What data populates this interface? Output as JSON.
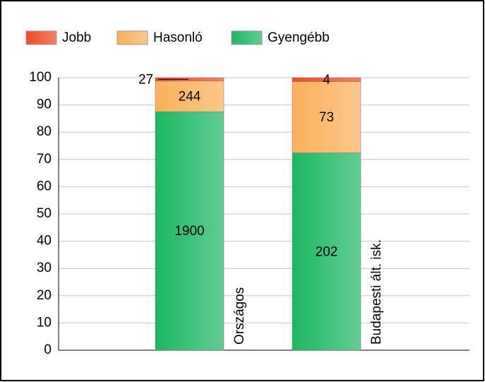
{
  "chart_data": {
    "type": "bar",
    "stacking": "percent",
    "categories": [
      "Országos",
      "Budapesti ált. isk."
    ],
    "series": [
      {
        "name": "Jobb",
        "color": "#f04a25",
        "values": [
          27,
          4
        ]
      },
      {
        "name": "Hasonló",
        "color": "#fbb05a",
        "values": [
          244,
          73
        ]
      },
      {
        "name": "Gyengébb",
        "color": "#1db763",
        "values": [
          1900,
          202
        ]
      }
    ],
    "ylim": [
      0,
      100
    ],
    "yticks": [
      0,
      10,
      20,
      30,
      40,
      50,
      60,
      70,
      80,
      90,
      100
    ],
    "grid": true
  }
}
